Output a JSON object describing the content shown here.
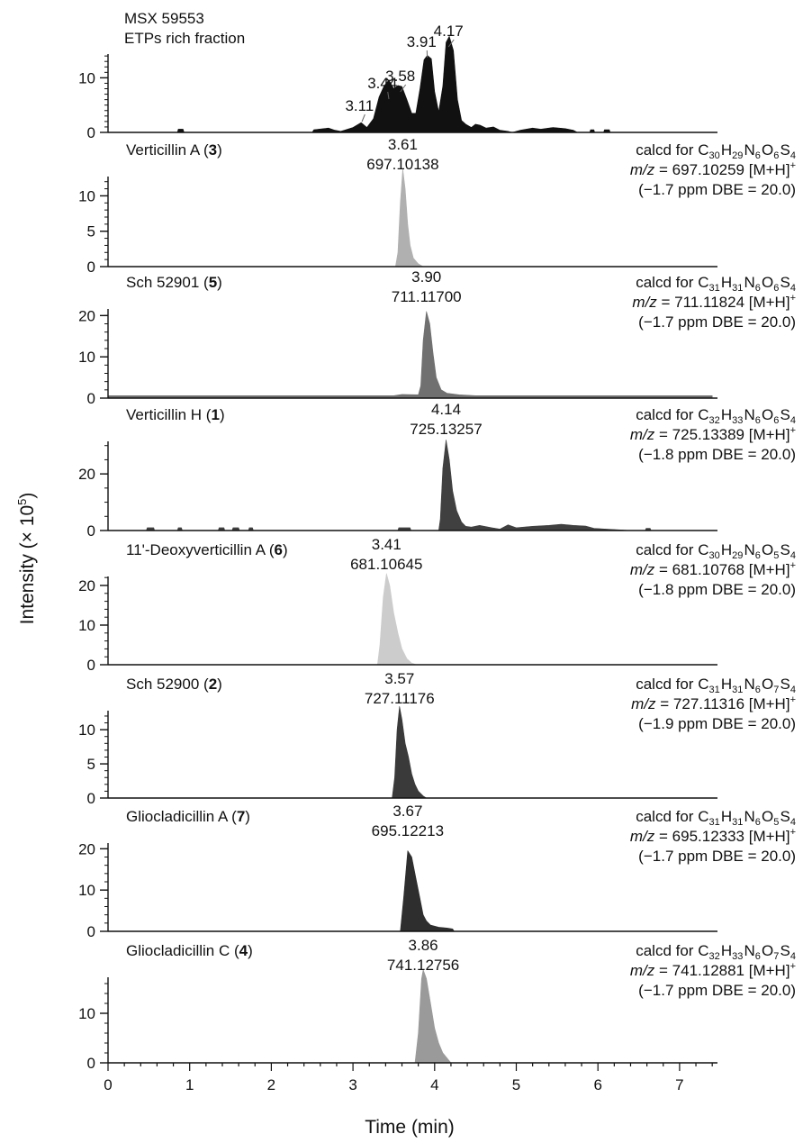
{
  "chart_data": {
    "type": "area",
    "xlabel": "Time (min)",
    "ylabel_text": "Intensity (× 10",
    "ylabel_sup": "5",
    "ylabel_close": ")",
    "xlim": [
      0,
      7.4
    ],
    "x_ticks": [
      "0",
      "1",
      "2",
      "3",
      "4",
      "5",
      "6",
      "7"
    ],
    "grid": false,
    "panels": [
      {
        "name_lines": [
          "MSX 59553",
          "ETPs rich fraction"
        ],
        "ylim": [
          0,
          16.5
        ],
        "y_ticks": [
          "0",
          "10"
        ],
        "color": "#111111",
        "peak_labels": [
          {
            "label": "3.11",
            "x": 3.11,
            "lx": 3.08
          },
          {
            "label": "3.44",
            "x": 3.44,
            "lx": 3.36
          },
          {
            "label": "3.58",
            "x": 3.58,
            "lx": 3.58
          },
          {
            "label": "3.91",
            "x": 3.91,
            "lx": 3.84
          },
          {
            "label": "4.17",
            "x": 4.17,
            "lx": 4.17
          }
        ],
        "points": [
          [
            0,
            0
          ],
          [
            0.85,
            0
          ],
          [
            0.86,
            0.6
          ],
          [
            0.92,
            0.6
          ],
          [
            0.93,
            0
          ],
          [
            2.5,
            0
          ],
          [
            2.52,
            0.5
          ],
          [
            2.7,
            0.8
          ],
          [
            2.78,
            0.4
          ],
          [
            2.85,
            0.2
          ],
          [
            3.0,
            0.9
          ],
          [
            3.1,
            1.8
          ],
          [
            3.17,
            0.9
          ],
          [
            3.25,
            2.5
          ],
          [
            3.32,
            6.5
          ],
          [
            3.38,
            8.5
          ],
          [
            3.44,
            9.6
          ],
          [
            3.5,
            8
          ],
          [
            3.55,
            8.6
          ],
          [
            3.6,
            8.4
          ],
          [
            3.66,
            6
          ],
          [
            3.72,
            3.5
          ],
          [
            3.77,
            3.5
          ],
          [
            3.82,
            8
          ],
          [
            3.87,
            13.3
          ],
          [
            3.91,
            14.1
          ],
          [
            3.96,
            13.5
          ],
          [
            4.0,
            7.5
          ],
          [
            4.05,
            3.8
          ],
          [
            4.1,
            8.5
          ],
          [
            4.14,
            16.5
          ],
          [
            4.18,
            17.6
          ],
          [
            4.23,
            15
          ],
          [
            4.28,
            6
          ],
          [
            4.33,
            2.2
          ],
          [
            4.38,
            1.5
          ],
          [
            4.45,
            0.9
          ],
          [
            4.5,
            1.5
          ],
          [
            4.56,
            1.3
          ],
          [
            4.63,
            0.8
          ],
          [
            4.72,
            1.0
          ],
          [
            4.8,
            0.4
          ],
          [
            4.9,
            0.2
          ],
          [
            4.95,
            0
          ],
          [
            5.05,
            0.4
          ],
          [
            5.2,
            0.8
          ],
          [
            5.3,
            0.6
          ],
          [
            5.45,
            0.9
          ],
          [
            5.6,
            0.7
          ],
          [
            5.7,
            0.4
          ],
          [
            5.75,
            0
          ],
          [
            5.9,
            0
          ],
          [
            5.91,
            0.5
          ],
          [
            5.95,
            0.5
          ],
          [
            5.96,
            0
          ],
          [
            6.07,
            0
          ],
          [
            6.08,
            0.5
          ],
          [
            6.14,
            0.5
          ],
          [
            6.15,
            0
          ],
          [
            7.4,
            0
          ]
        ]
      },
      {
        "name": "Verticillin A (",
        "number": "3",
        "rt": "3.61",
        "mz": "697.10138",
        "calc": {
          "prefix": "calcd for ",
          "formula": [
            [
              "C",
              "30"
            ],
            [
              "H",
              "29"
            ],
            [
              "N",
              "6"
            ],
            [
              "O",
              "6"
            ],
            [
              "S",
              "4"
            ]
          ],
          "mz_label": "m/z",
          "mz_line": " = 697.10259 [M+H]",
          "mz_sup": "+",
          "ppm_line": "(−1.7 ppm DBE = 20.0)"
        },
        "ylim": [
          0,
          14
        ],
        "y_ticks": [
          "0",
          "5",
          "10"
        ],
        "color": "#b0b0b0",
        "points": [
          [
            0,
            0
          ],
          [
            3.52,
            0
          ],
          [
            3.55,
            2
          ],
          [
            3.58,
            9
          ],
          [
            3.61,
            13.8
          ],
          [
            3.64,
            11
          ],
          [
            3.67,
            6
          ],
          [
            3.7,
            3
          ],
          [
            3.74,
            1.2
          ],
          [
            3.8,
            0.4
          ],
          [
            3.86,
            0
          ],
          [
            7.4,
            0
          ]
        ]
      },
      {
        "name": "Sch 52901 (",
        "number": "5",
        "rt": "3.90",
        "mz": "711.11700",
        "calc": {
          "prefix": "calcd for ",
          "formula": [
            [
              "C",
              "31"
            ],
            [
              "H",
              "31"
            ],
            [
              "N",
              "6"
            ],
            [
              "O",
              "6"
            ],
            [
              "S",
              "4"
            ]
          ],
          "mz_label": "m/z",
          "mz_line": " = 711.11824 [M+H]",
          "mz_sup": "+",
          "ppm_line": "(−1.7 ppm DBE = 20.0)"
        },
        "ylim": [
          0,
          24
        ],
        "y_ticks": [
          "0",
          "10",
          "20"
        ],
        "color": "#707070",
        "points": [
          [
            0,
            0
          ],
          [
            0.01,
            0.6
          ],
          [
            3.5,
            0.6
          ],
          [
            3.6,
            0.9
          ],
          [
            3.8,
            0.8
          ],
          [
            3.83,
            3
          ],
          [
            3.86,
            14
          ],
          [
            3.9,
            21
          ],
          [
            3.94,
            18
          ],
          [
            3.98,
            11
          ],
          [
            4.02,
            5
          ],
          [
            4.08,
            2
          ],
          [
            4.15,
            1.2
          ],
          [
            4.3,
            0.8
          ],
          [
            4.5,
            0.6
          ],
          [
            7.4,
            0.6
          ],
          [
            7.4,
            0
          ]
        ]
      },
      {
        "name": "Verticillin H (",
        "number": "1",
        "rt": "4.14",
        "mz": "725.13257",
        "calc": {
          "prefix": "calcd for ",
          "formula": [
            [
              "C",
              "32"
            ],
            [
              "H",
              "33"
            ],
            [
              "N",
              "6"
            ],
            [
              "O",
              "6"
            ],
            [
              "S",
              "4"
            ]
          ],
          "mz_label": "m/z",
          "mz_line": " = 725.13389 [M+H]",
          "mz_sup": "+",
          "ppm_line": "(−1.8 ppm DBE = 20.0)"
        },
        "ylim": [
          0,
          35
        ],
        "y_ticks": [
          "0",
          "20"
        ],
        "color": "#404040",
        "points": [
          [
            0,
            0
          ],
          [
            0.47,
            0
          ],
          [
            0.48,
            1
          ],
          [
            0.56,
            1
          ],
          [
            0.57,
            0
          ],
          [
            0.85,
            0
          ],
          [
            0.86,
            1
          ],
          [
            0.9,
            1
          ],
          [
            0.91,
            0
          ],
          [
            1.35,
            0
          ],
          [
            1.36,
            1
          ],
          [
            1.42,
            1
          ],
          [
            1.43,
            0
          ],
          [
            1.52,
            0
          ],
          [
            1.53,
            1
          ],
          [
            1.6,
            1
          ],
          [
            1.61,
            0
          ],
          [
            1.72,
            0
          ],
          [
            1.73,
            1
          ],
          [
            1.77,
            1
          ],
          [
            1.78,
            0
          ],
          [
            3.55,
            0
          ],
          [
            3.56,
            1
          ],
          [
            3.7,
            1
          ],
          [
            3.71,
            0
          ],
          [
            4.05,
            0
          ],
          [
            4.07,
            4
          ],
          [
            4.1,
            22
          ],
          [
            4.14,
            32
          ],
          [
            4.18,
            25
          ],
          [
            4.22,
            14
          ],
          [
            4.27,
            7
          ],
          [
            4.33,
            3
          ],
          [
            4.38,
            1.5
          ],
          [
            4.45,
            1.2
          ],
          [
            4.55,
            1.8
          ],
          [
            4.7,
            1
          ],
          [
            4.8,
            0.5
          ],
          [
            4.9,
            2
          ],
          [
            5.0,
            1
          ],
          [
            5.2,
            1.5
          ],
          [
            5.4,
            1.8
          ],
          [
            5.55,
            2.2
          ],
          [
            5.7,
            1.8
          ],
          [
            5.85,
            1.6
          ],
          [
            5.95,
            0.8
          ],
          [
            6.1,
            0.5
          ],
          [
            6.3,
            0.2
          ],
          [
            6.4,
            0
          ],
          [
            6.58,
            0
          ],
          [
            6.59,
            0.8
          ],
          [
            6.64,
            0.8
          ],
          [
            6.65,
            0
          ],
          [
            7.4,
            0
          ]
        ]
      },
      {
        "name": "11'-Deoxyverticillin A (",
        "number": "6",
        "rt": "3.41",
        "mz": "681.10645",
        "calc": {
          "prefix": "calcd for ",
          "formula": [
            [
              "C",
              "30"
            ],
            [
              "H",
              "29"
            ],
            [
              "N",
              "6"
            ],
            [
              "O",
              "5"
            ],
            [
              "S",
              "4"
            ]
          ],
          "mz_label": "m/z",
          "mz_line": " = 681.10768 [M+H]",
          "mz_sup": "+",
          "ppm_line": "(−1.8 ppm DBE = 20.0)"
        },
        "ylim": [
          0,
          25
        ],
        "y_ticks": [
          "0",
          "10",
          "20"
        ],
        "color": "#cccccc",
        "points": [
          [
            0,
            0
          ],
          [
            3.3,
            0
          ],
          [
            3.33,
            5
          ],
          [
            3.37,
            17
          ],
          [
            3.41,
            23
          ],
          [
            3.45,
            20
          ],
          [
            3.5,
            13
          ],
          [
            3.55,
            8
          ],
          [
            3.6,
            4
          ],
          [
            3.66,
            1.5
          ],
          [
            3.72,
            0.4
          ],
          [
            3.78,
            0
          ],
          [
            7.4,
            0
          ]
        ]
      },
      {
        "name": "Sch 52900 (",
        "number": "2",
        "rt": "3.57",
        "mz": "727.11176",
        "calc": {
          "prefix": "calcd for ",
          "formula": [
            [
              "C",
              "31"
            ],
            [
              "H",
              "31"
            ],
            [
              "N",
              "6"
            ],
            [
              "O",
              "7"
            ],
            [
              "S",
              "4"
            ]
          ],
          "mz_label": "m/z",
          "mz_line": " = 727.11316 [M+H]",
          "mz_sup": "+",
          "ppm_line": "(−1.9 ppm DBE = 20.0)"
        },
        "ylim": [
          0,
          14.5
        ],
        "y_ticks": [
          "0",
          "5",
          "10"
        ],
        "color": "#3a3a3a",
        "points": [
          [
            0,
            0
          ],
          [
            3.48,
            0
          ],
          [
            3.51,
            3
          ],
          [
            3.54,
            10
          ],
          [
            3.57,
            13.4
          ],
          [
            3.6,
            11.5
          ],
          [
            3.64,
            8
          ],
          [
            3.68,
            6
          ],
          [
            3.72,
            3.5
          ],
          [
            3.76,
            2
          ],
          [
            3.8,
            1
          ],
          [
            3.86,
            0.3
          ],
          [
            3.9,
            0
          ],
          [
            7.4,
            0
          ]
        ]
      },
      {
        "name": "Gliocladicillin A (",
        "number": "7",
        "rt": "3.67",
        "mz": "695.12213",
        "calc": {
          "prefix": "calcd for ",
          "formula": [
            [
              "C",
              "31"
            ],
            [
              "H",
              "31"
            ],
            [
              "N",
              "6"
            ],
            [
              "O",
              "5"
            ],
            [
              "S",
              "4"
            ]
          ],
          "mz_label": "m/z",
          "mz_line": " = 695.12333 [M+H]",
          "mz_sup": "+",
          "ppm_line": "(−1.7 ppm DBE = 20.0)"
        },
        "ylim": [
          0,
          24
        ],
        "y_ticks": [
          "0",
          "10",
          "20"
        ],
        "color": "#2e2e2e",
        "points": [
          [
            0,
            0
          ],
          [
            3.58,
            0
          ],
          [
            3.62,
            8
          ],
          [
            3.67,
            19.5
          ],
          [
            3.72,
            18
          ],
          [
            3.77,
            13
          ],
          [
            3.82,
            8
          ],
          [
            3.86,
            4
          ],
          [
            3.9,
            2.5
          ],
          [
            3.95,
            1.5
          ],
          [
            4.05,
            1
          ],
          [
            4.15,
            0.8
          ],
          [
            4.22,
            0.6
          ],
          [
            4.24,
            0
          ],
          [
            7.4,
            0
          ]
        ]
      },
      {
        "name": "Gliocladicillin C (",
        "number": "4",
        "rt": "3.86",
        "mz": "741.12756",
        "calc": {
          "prefix": "calcd for ",
          "formula": [
            [
              "C",
              "32"
            ],
            [
              "H",
              "33"
            ],
            [
              "N",
              "6"
            ],
            [
              "O",
              "7"
            ],
            [
              "S",
              "4"
            ]
          ],
          "mz_label": "m/z",
          "mz_line": " = 741.12881 [M+H]",
          "mz_sup": "+",
          "ppm_line": "(−1.7 ppm DBE = 20.0)"
        },
        "ylim": [
          0,
          20
        ],
        "y_ticks": [
          "0",
          "10"
        ],
        "color": "#9a9a9a",
        "points": [
          [
            0,
            0
          ],
          [
            3.76,
            0
          ],
          [
            3.8,
            6
          ],
          [
            3.84,
            17
          ],
          [
            3.86,
            18.8
          ],
          [
            3.9,
            17
          ],
          [
            3.95,
            12
          ],
          [
            4.0,
            7
          ],
          [
            4.05,
            4
          ],
          [
            4.1,
            2
          ],
          [
            4.16,
            0.8
          ],
          [
            4.2,
            0
          ],
          [
            7.4,
            0
          ]
        ]
      }
    ]
  }
}
